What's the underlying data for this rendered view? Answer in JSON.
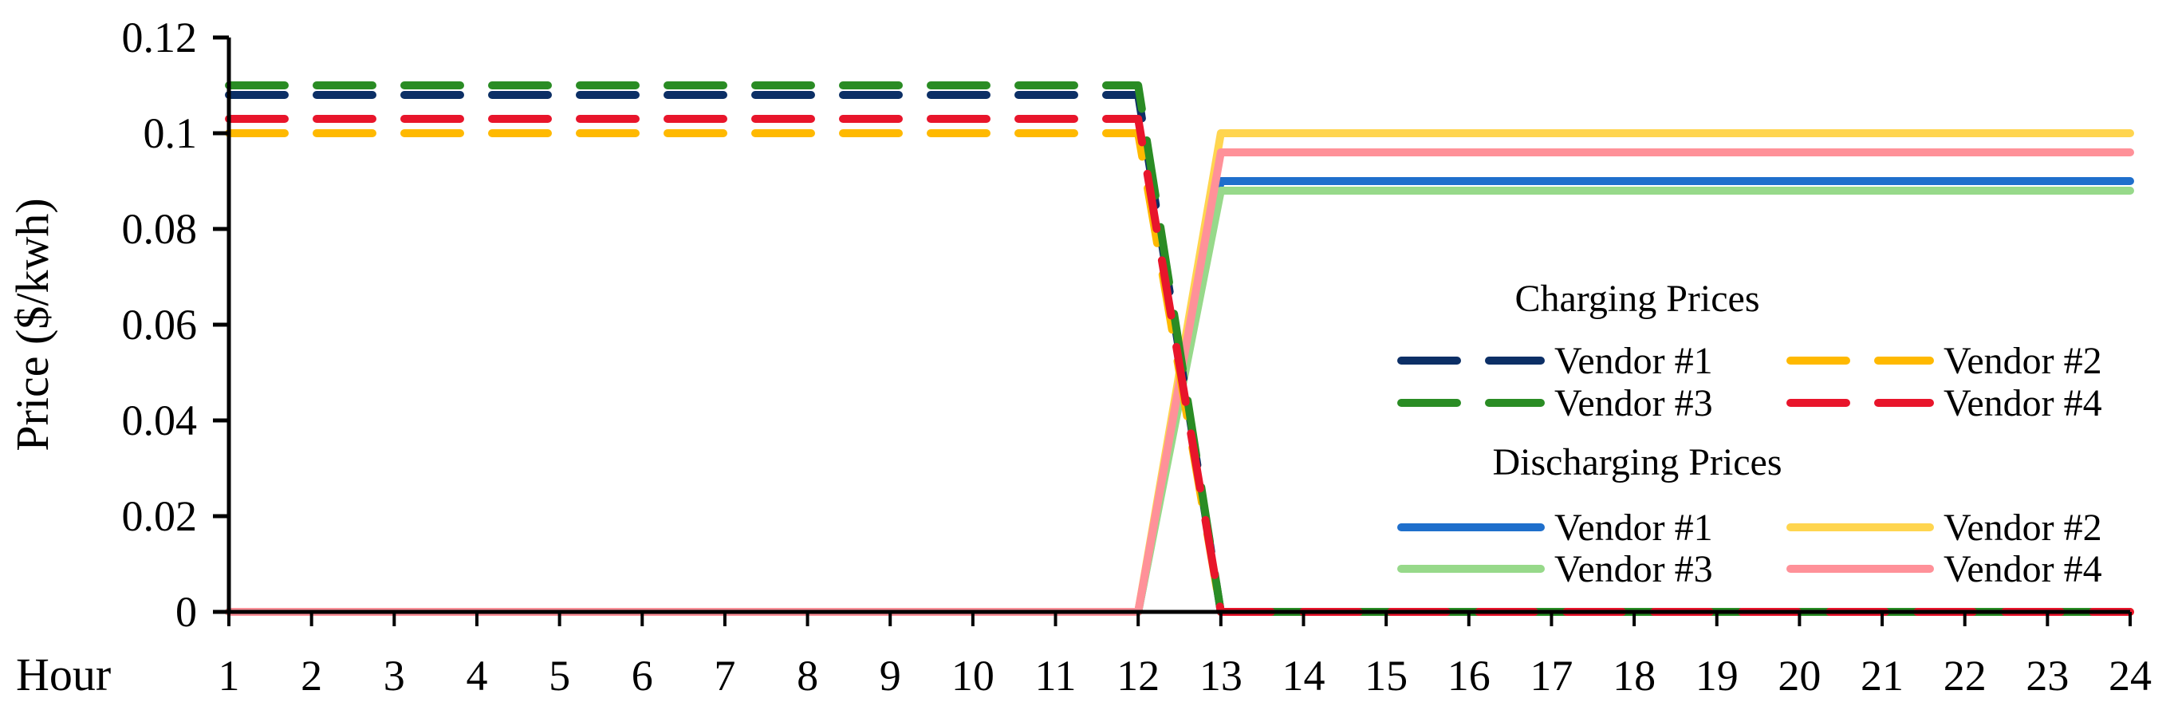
{
  "chart_data": {
    "type": "line",
    "title": "",
    "xlabel": "Hour",
    "ylabel": "Price ($/kwh)",
    "x": [
      1,
      2,
      3,
      4,
      5,
      6,
      7,
      8,
      9,
      10,
      11,
      12,
      13,
      14,
      15,
      16,
      17,
      18,
      19,
      20,
      21,
      22,
      23,
      24
    ],
    "xlim": [
      1,
      24
    ],
    "ylim": [
      0,
      0.12
    ],
    "yticks": [
      0,
      0.02,
      0.04,
      0.06,
      0.08,
      0.1,
      0.12
    ],
    "ytick_labels": [
      "0",
      "0.02",
      "0.04",
      "0.06",
      "0.08",
      "0.1",
      "0.12"
    ],
    "xtick_labels": [
      "1",
      "2",
      "3",
      "4",
      "5",
      "6",
      "7",
      "8",
      "9",
      "10",
      "11",
      "12",
      "13",
      "14",
      "15",
      "16",
      "17",
      "18",
      "19",
      "20",
      "21",
      "22",
      "23",
      "24"
    ],
    "grid": false,
    "legend_placement": "right",
    "groups": [
      {
        "title": "Charging Prices",
        "style": "dashed",
        "series": [
          {
            "name": "Vendor #1",
            "color": "#0c2f66",
            "values": [
              0.108,
              0.108,
              0.108,
              0.108,
              0.108,
              0.108,
              0.108,
              0.108,
              0.108,
              0.108,
              0.108,
              0.108,
              0,
              0,
              0,
              0,
              0,
              0,
              0,
              0,
              0,
              0,
              0,
              0
            ]
          },
          {
            "name": "Vendor #2",
            "color": "#ffb900",
            "values": [
              0.1,
              0.1,
              0.1,
              0.1,
              0.1,
              0.1,
              0.1,
              0.1,
              0.1,
              0.1,
              0.1,
              0.1,
              0,
              0,
              0,
              0,
              0,
              0,
              0,
              0,
              0,
              0,
              0,
              0
            ]
          },
          {
            "name": "Vendor #3",
            "color": "#2a8c24",
            "values": [
              0.11,
              0.11,
              0.11,
              0.11,
              0.11,
              0.11,
              0.11,
              0.11,
              0.11,
              0.11,
              0.11,
              0.11,
              0,
              0,
              0,
              0,
              0,
              0,
              0,
              0,
              0,
              0,
              0,
              0
            ]
          },
          {
            "name": "Vendor #4",
            "color": "#e8152b",
            "values": [
              0.103,
              0.103,
              0.103,
              0.103,
              0.103,
              0.103,
              0.103,
              0.103,
              0.103,
              0.103,
              0.103,
              0.103,
              0,
              0,
              0,
              0,
              0,
              0,
              0,
              0,
              0,
              0,
              0,
              0
            ]
          }
        ]
      },
      {
        "title": "Discharging Prices",
        "style": "solid",
        "series": [
          {
            "name": "Vendor #1",
            "color": "#1f6fcc",
            "values": [
              0,
              0,
              0,
              0,
              0,
              0,
              0,
              0,
              0,
              0,
              0,
              0,
              0.09,
              0.09,
              0.09,
              0.09,
              0.09,
              0.09,
              0.09,
              0.09,
              0.09,
              0.09,
              0.09,
              0.09
            ]
          },
          {
            "name": "Vendor #2",
            "color": "#ffd54f",
            "values": [
              0,
              0,
              0,
              0,
              0,
              0,
              0,
              0,
              0,
              0,
              0,
              0,
              0.1,
              0.1,
              0.1,
              0.1,
              0.1,
              0.1,
              0.1,
              0.1,
              0.1,
              0.1,
              0.1,
              0.1
            ]
          },
          {
            "name": "Vendor #3",
            "color": "#97d98a",
            "values": [
              0,
              0,
              0,
              0,
              0,
              0,
              0,
              0,
              0,
              0,
              0,
              0,
              0.088,
              0.088,
              0.088,
              0.088,
              0.088,
              0.088,
              0.088,
              0.088,
              0.088,
              0.088,
              0.088,
              0.088
            ]
          },
          {
            "name": "Vendor #4",
            "color": "#ff9199",
            "values": [
              0,
              0,
              0,
              0,
              0,
              0,
              0,
              0,
              0,
              0,
              0,
              0,
              0.096,
              0.096,
              0.096,
              0.096,
              0.096,
              0.096,
              0.096,
              0.096,
              0.096,
              0.096,
              0.096,
              0.096
            ]
          }
        ]
      }
    ]
  }
}
